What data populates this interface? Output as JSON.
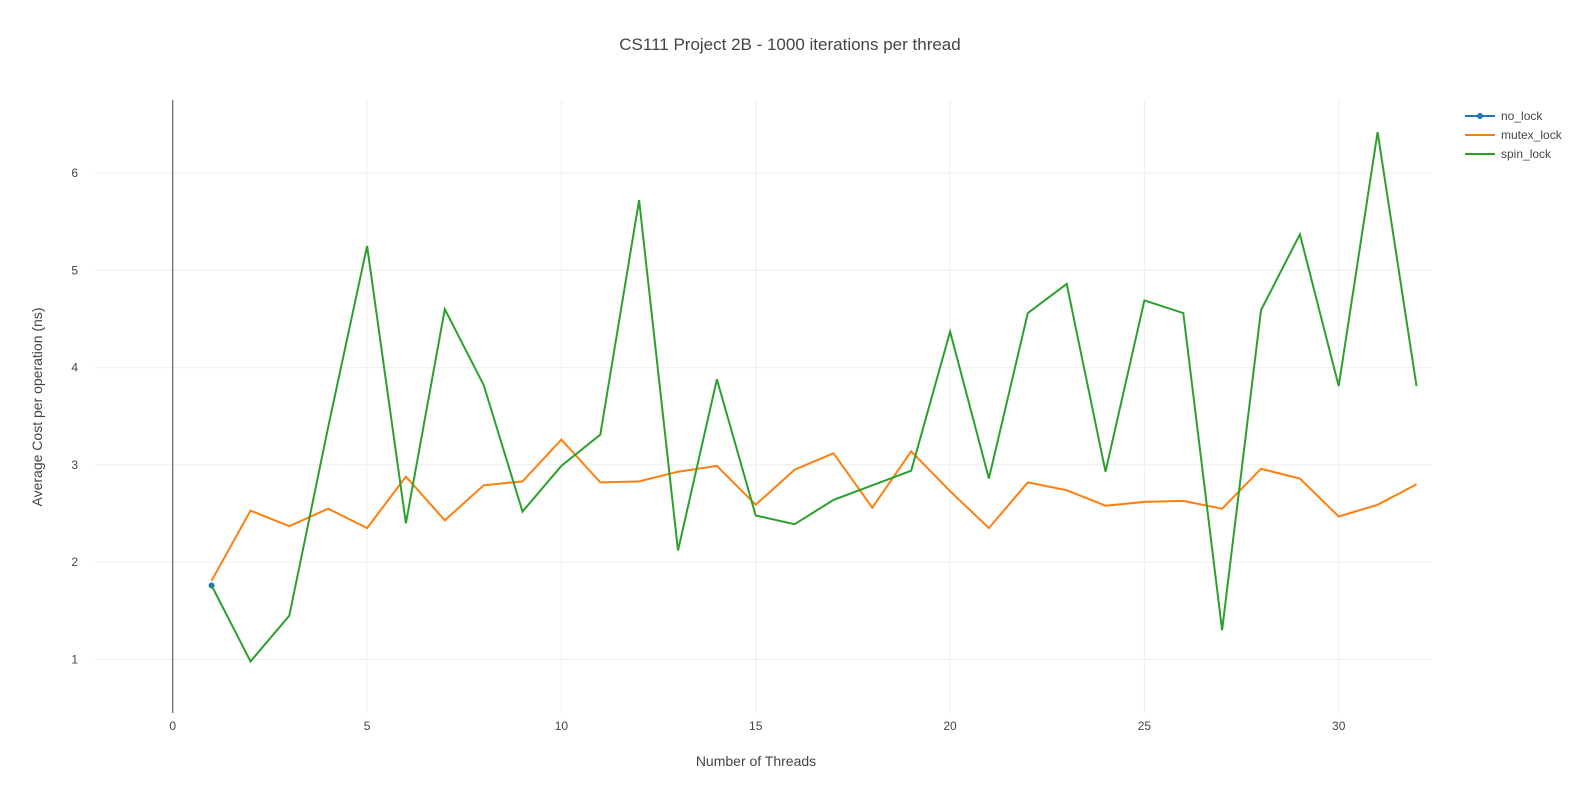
{
  "chart_data": {
    "type": "line",
    "title": "CS111 Project 2B - 1000 iterations per thread",
    "xlabel": "Number of Threads",
    "ylabel": "Average Cost per operation (ns)",
    "xlim": [
      -2.0,
      32.4
    ],
    "ylim": [
      0.45,
      6.75
    ],
    "xticks": [
      0,
      5,
      10,
      15,
      20,
      25,
      30
    ],
    "yticks": [
      1,
      2,
      3,
      4,
      5,
      6
    ],
    "grid": true,
    "legend_position": "top-right",
    "series": [
      {
        "name": "no_lock",
        "color": "#1f77b4",
        "markers": true,
        "x": [
          1
        ],
        "y": [
          1.76
        ]
      },
      {
        "name": "mutex_lock",
        "color": "#ff7f0e",
        "markers": false,
        "x": [
          1,
          2,
          3,
          4,
          5,
          6,
          7,
          8,
          9,
          10,
          11,
          12,
          13,
          14,
          15,
          16,
          17,
          18,
          19,
          20,
          21,
          22,
          23,
          24,
          25,
          26,
          27,
          28,
          29,
          30,
          31,
          32
        ],
        "y": [
          1.81,
          2.53,
          2.37,
          2.55,
          2.35,
          2.88,
          2.43,
          2.79,
          2.83,
          3.26,
          2.82,
          2.83,
          2.93,
          2.99,
          2.59,
          2.95,
          3.12,
          2.56,
          3.14,
          2.73,
          2.35,
          2.82,
          2.74,
          2.58,
          2.62,
          2.63,
          2.55,
          2.96,
          2.86,
          2.47,
          2.59,
          2.8
        ]
      },
      {
        "name": "spin_lock",
        "color": "#2ca02c",
        "markers": false,
        "x": [
          1,
          2,
          3,
          4,
          5,
          6,
          7,
          8,
          9,
          10,
          11,
          12,
          13,
          14,
          15,
          16,
          17,
          18,
          19,
          20,
          21,
          22,
          23,
          24,
          25,
          26,
          27,
          28,
          29,
          30,
          31,
          32
        ],
        "y": [
          1.76,
          0.98,
          1.45,
          3.39,
          5.25,
          2.4,
          4.6,
          3.82,
          2.52,
          2.99,
          3.31,
          5.72,
          2.12,
          3.88,
          2.48,
          2.39,
          2.64,
          2.79,
          2.94,
          4.37,
          2.86,
          4.56,
          4.86,
          2.93,
          4.69,
          4.56,
          1.3,
          4.59,
          5.37,
          3.81,
          6.42,
          3.81
        ]
      }
    ]
  }
}
